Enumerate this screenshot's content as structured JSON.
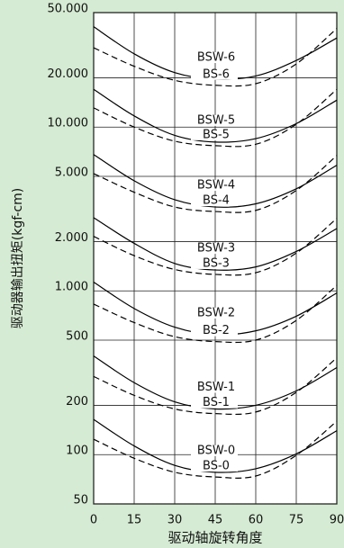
{
  "chart_data": {
    "type": "line",
    "x_label": "驱动轴旋转角度",
    "y_label": "驱动器输出扭矩(kgf-cm)",
    "x": [
      0,
      15,
      30,
      45,
      60,
      75,
      90
    ],
    "xlim": [
      0,
      90
    ],
    "xticks": [
      0,
      15,
      30,
      45,
      60,
      75,
      90
    ],
    "ylim": [
      50,
      50000
    ],
    "log_y": true,
    "yticks": [
      {
        "value": 50,
        "label": "50"
      },
      {
        "value": 100,
        "label": "100"
      },
      {
        "value": 200,
        "label": "200"
      },
      {
        "value": 500,
        "label": "500"
      },
      {
        "value": 1000,
        "label": "1.000"
      },
      {
        "value": 2000,
        "label": "2.000"
      },
      {
        "value": 5000,
        "label": "5.000"
      },
      {
        "value": 10000,
        "label": "10.000"
      },
      {
        "value": 20000,
        "label": "20.000"
      },
      {
        "value": 50000,
        "label": "50.000"
      }
    ],
    "grid": true,
    "series": [
      {
        "name": "BSW-6",
        "color": "#000000",
        "style": "solid",
        "values": [
          41000,
          28000,
          21500,
          19600,
          20500,
          25500,
          35000
        ]
      },
      {
        "name": "BS-6",
        "color": "#000000",
        "style": "dashed",
        "values": [
          30500,
          23500,
          19300,
          18000,
          18400,
          24300,
          40000
        ]
      },
      {
        "name": "BSW-5",
        "color": "#000000",
        "style": "solid",
        "values": [
          17000,
          11700,
          8900,
          8100,
          8500,
          10500,
          14600
        ]
      },
      {
        "name": "BS-5",
        "color": "#000000",
        "style": "dashed",
        "values": [
          13100,
          10000,
          8200,
          7700,
          7850,
          10400,
          17000
        ]
      },
      {
        "name": "BSW-4",
        "color": "#000000",
        "style": "solid",
        "values": [
          6800,
          4700,
          3600,
          3250,
          3400,
          4200,
          5850
        ]
      },
      {
        "name": "BS-4",
        "color": "#000000",
        "style": "dashed",
        "values": [
          5200,
          4000,
          3250,
          3050,
          3100,
          4100,
          6700
        ]
      },
      {
        "name": "BSW-3",
        "color": "#000000",
        "style": "solid",
        "values": [
          2800,
          1950,
          1470,
          1340,
          1400,
          1740,
          2400
        ]
      },
      {
        "name": "BS-3",
        "color": "#000000",
        "style": "dashed",
        "values": [
          2150,
          1640,
          1350,
          1260,
          1290,
          1700,
          2770
        ]
      },
      {
        "name": "BSW-2",
        "color": "#000000",
        "style": "solid",
        "values": [
          1130,
          780,
          600,
          540,
          570,
          700,
          970
        ]
      },
      {
        "name": "BS-2",
        "color": "#000000",
        "style": "dashed",
        "values": [
          830,
          640,
          525,
          490,
          500,
          660,
          1080
        ]
      },
      {
        "name": "BSW-1",
        "color": "#000000",
        "style": "solid",
        "values": [
          400,
          275,
          210,
          190,
          200,
          245,
          340
        ]
      },
      {
        "name": "BS-1",
        "color": "#000000",
        "style": "dashed",
        "values": [
          300,
          230,
          190,
          178,
          182,
          240,
          390
        ]
      },
      {
        "name": "BSW-0",
        "color": "#000000",
        "style": "solid",
        "values": [
          164,
          113,
          86,
          78,
          82,
          101,
          140
        ]
      },
      {
        "name": "BS-0",
        "color": "#000000",
        "style": "dashed",
        "values": [
          124,
          95,
          78,
          73,
          74,
          99,
          160
        ]
      }
    ]
  }
}
